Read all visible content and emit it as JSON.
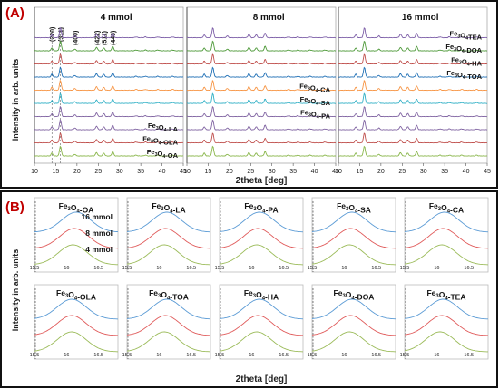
{
  "figure": {
    "panel_a_label": "(A)",
    "panel_b_label": "(B)",
    "xlabel": "2theta [deg]",
    "ylabel": "Intensity in arb. units",
    "miller_indices": [
      "(220)",
      "(311)",
      "(400)",
      "(422)",
      "(511)",
      "(440)"
    ]
  },
  "colors": {
    "panel_label": "#c00000",
    "frame": "#111111",
    "OA": "#89b64a",
    "OLA": "#c0504d",
    "LA": "#8064a2",
    "PA": "#8064a2",
    "SA": "#31b0c6",
    "CA": "#f79646",
    "TOA": "#1f6fb5",
    "HA": "#c0504d",
    "DOA": "#4f9a3a",
    "TEA": "#7d5fa8",
    "mmol16": "#5b9bd5",
    "mmol8": "#e05a5a",
    "mmol4": "#9bbb59"
  },
  "chart_data": [
    {
      "type": "line",
      "title": "4 mmol",
      "xlabel": "2theta [deg]",
      "ylabel": "Intensity in arb. units",
      "xlim": [
        10,
        45
      ],
      "xticks": [
        "10",
        "15",
        "20",
        "25",
        "30",
        "35",
        "40",
        "45"
      ],
      "peaks_2theta": [
        14.1,
        16.1,
        19.5,
        24.6,
        26.3,
        28.4
      ],
      "series": [
        {
          "name": "Fe3O4-OA",
          "label": "Fe₃O₄-OA",
          "colorKey": "OA",
          "labeled": true
        },
        {
          "name": "Fe3O4-OLA",
          "label": "Fe₃O₄-OLA",
          "colorKey": "OLA",
          "labeled": true
        },
        {
          "name": "Fe3O4-LA",
          "label": "Fe₃O₄-LA",
          "colorKey": "LA",
          "labeled": true
        },
        {
          "name": "Fe3O4-PA",
          "colorKey": "PA",
          "labeled": false
        },
        {
          "name": "Fe3O4-SA",
          "colorKey": "SA",
          "labeled": false
        },
        {
          "name": "Fe3O4-CA",
          "colorKey": "CA",
          "labeled": false
        },
        {
          "name": "Fe3O4-TOA",
          "colorKey": "TOA",
          "labeled": false
        },
        {
          "name": "Fe3O4-HA",
          "colorKey": "HA",
          "labeled": false
        },
        {
          "name": "Fe3O4-DOA",
          "colorKey": "DOA",
          "labeled": false
        },
        {
          "name": "Fe3O4-TEA",
          "colorKey": "TEA",
          "labeled": false
        }
      ]
    },
    {
      "type": "line",
      "title": "8 mmol",
      "xlabel": "2theta [deg]",
      "xlim": [
        10,
        45
      ],
      "xticks": [
        "10",
        "15",
        "20",
        "25",
        "30",
        "35",
        "40",
        "45"
      ],
      "peaks_2theta": [
        14.1,
        16.1,
        19.5,
        24.6,
        26.3,
        28.4
      ],
      "series": [
        {
          "name": "Fe3O4-OA",
          "colorKey": "OA",
          "labeled": false
        },
        {
          "name": "Fe3O4-OLA",
          "colorKey": "OLA",
          "labeled": false
        },
        {
          "name": "Fe3O4-LA",
          "colorKey": "LA",
          "labeled": false
        },
        {
          "name": "Fe3O4-PA",
          "label": "Fe₃O₄-PA",
          "colorKey": "PA",
          "labeled": true
        },
        {
          "name": "Fe3O4-SA",
          "label": "Fe₃O₄-SA",
          "colorKey": "SA",
          "labeled": true
        },
        {
          "name": "Fe3O4-CA",
          "label": "Fe₃O₄-CA",
          "colorKey": "CA",
          "labeled": true
        },
        {
          "name": "Fe3O4-TOA",
          "colorKey": "TOA",
          "labeled": false
        },
        {
          "name": "Fe3O4-HA",
          "colorKey": "HA",
          "labeled": false
        },
        {
          "name": "Fe3O4-DOA",
          "colorKey": "DOA",
          "labeled": false
        },
        {
          "name": "Fe3O4-TEA",
          "colorKey": "TEA",
          "labeled": false
        }
      ]
    },
    {
      "type": "line",
      "title": "16 mmol",
      "xlabel": "2theta [deg]",
      "xlim": [
        10,
        45
      ],
      "xticks": [
        "10",
        "15",
        "20",
        "25",
        "30",
        "35",
        "40",
        "45"
      ],
      "peaks_2theta": [
        14.1,
        16.1,
        19.5,
        24.6,
        26.3,
        28.4
      ],
      "series": [
        {
          "name": "Fe3O4-OA",
          "colorKey": "OA",
          "labeled": false
        },
        {
          "name": "Fe3O4-OLA",
          "colorKey": "OLA",
          "labeled": false
        },
        {
          "name": "Fe3O4-LA",
          "colorKey": "LA",
          "labeled": false
        },
        {
          "name": "Fe3O4-PA",
          "colorKey": "PA",
          "labeled": false
        },
        {
          "name": "Fe3O4-SA",
          "colorKey": "SA",
          "labeled": false
        },
        {
          "name": "Fe3O4-CA",
          "colorKey": "CA",
          "labeled": false
        },
        {
          "name": "Fe3O4-TOA",
          "label": "Fe₃O₄-TOA",
          "colorKey": "TOA",
          "labeled": true
        },
        {
          "name": "Fe3O4-HA",
          "label": "Fe₃O₄-HA",
          "colorKey": "HA",
          "labeled": true
        },
        {
          "name": "Fe3O4-DOA",
          "label": "Fe₃O₄-DOA",
          "colorKey": "DOA",
          "labeled": true
        },
        {
          "name": "Fe3O4-TEA",
          "label": "Fe₃O₄TEA",
          "colorKey": "TEA",
          "labeled": true
        }
      ]
    },
    {
      "type": "line",
      "panel": "B",
      "xlim": [
        15.5,
        16.8
      ],
      "xticks": [
        "15.5",
        "16",
        "16.5"
      ],
      "series_order": [
        "16 mmol",
        "8 mmol",
        "4 mmol"
      ],
      "series_colors": [
        "mmol16",
        "mmol8",
        "mmol4"
      ],
      "subplots": [
        {
          "title": "Fe₃O₄-OA",
          "peak_center": [
            16.15,
            16.12,
            16.1
          ],
          "show_series_labels": true
        },
        {
          "title": "Fe₃O₄-LA",
          "peak_center": [
            16.12,
            16.1,
            16.08
          ]
        },
        {
          "title": "Fe₃O₄-PA",
          "peak_center": [
            16.12,
            16.1,
            16.08
          ]
        },
        {
          "title": "Fe₃O₄-SA",
          "peak_center": [
            16.12,
            16.1,
            16.08
          ]
        },
        {
          "title": "Fe₃O₄-CA",
          "peak_center": [
            16.12,
            16.1,
            16.08
          ]
        },
        {
          "title": "Fe₃O₄-OLA",
          "peak_center": [
            16.08,
            16.08,
            16.08
          ]
        },
        {
          "title": "Fe₃O₄-TOA",
          "peak_center": [
            16.12,
            16.1,
            16.08
          ]
        },
        {
          "title": "Fe₃O₄-HA",
          "peak_center": [
            16.12,
            16.1,
            16.08
          ]
        },
        {
          "title": "Fe₃O₄-DOA",
          "peak_center": [
            16.12,
            16.1,
            16.08
          ]
        },
        {
          "title": "Fe₃O₄-TEA",
          "peak_center": [
            16.1,
            16.08,
            16.05
          ]
        }
      ]
    }
  ]
}
